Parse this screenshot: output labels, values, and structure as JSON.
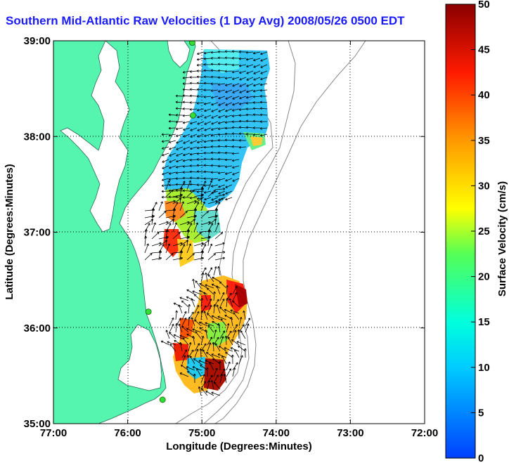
{
  "title": "Southern Mid-Atlantic Raw Velocities (1 Day Avg) 2008/05/26 0500 EDT",
  "xlabel": "Longitude (Degrees:Minutes)",
  "ylabel": "Latitude (Degrees:Minutes)",
  "x_ticks": [
    "77:00",
    "76:00",
    "75:00",
    "74:00",
    "73:00",
    "72:00"
  ],
  "y_ticks": [
    "39:00",
    "38:00",
    "37:00",
    "36:00",
    "35:00"
  ],
  "colorbar": {
    "label": "Surface Velocity (cm/s)",
    "ticks": [
      "0",
      "5",
      "10",
      "15",
      "20",
      "25",
      "30",
      "35",
      "40",
      "45",
      "50"
    ],
    "range": [
      0,
      50
    ]
  },
  "map": {
    "lon_range": [
      -77,
      -72
    ],
    "lat_range": [
      35,
      39
    ],
    "grid": true,
    "land_color": "#55f5b0",
    "stations": [
      {
        "lon": -75.13,
        "lat": 38.98
      },
      {
        "lon": -75.12,
        "lat": 38.22
      },
      {
        "lon": -75.72,
        "lat": 36.17
      },
      {
        "lon": -75.53,
        "lat": 35.25
      }
    ]
  }
}
